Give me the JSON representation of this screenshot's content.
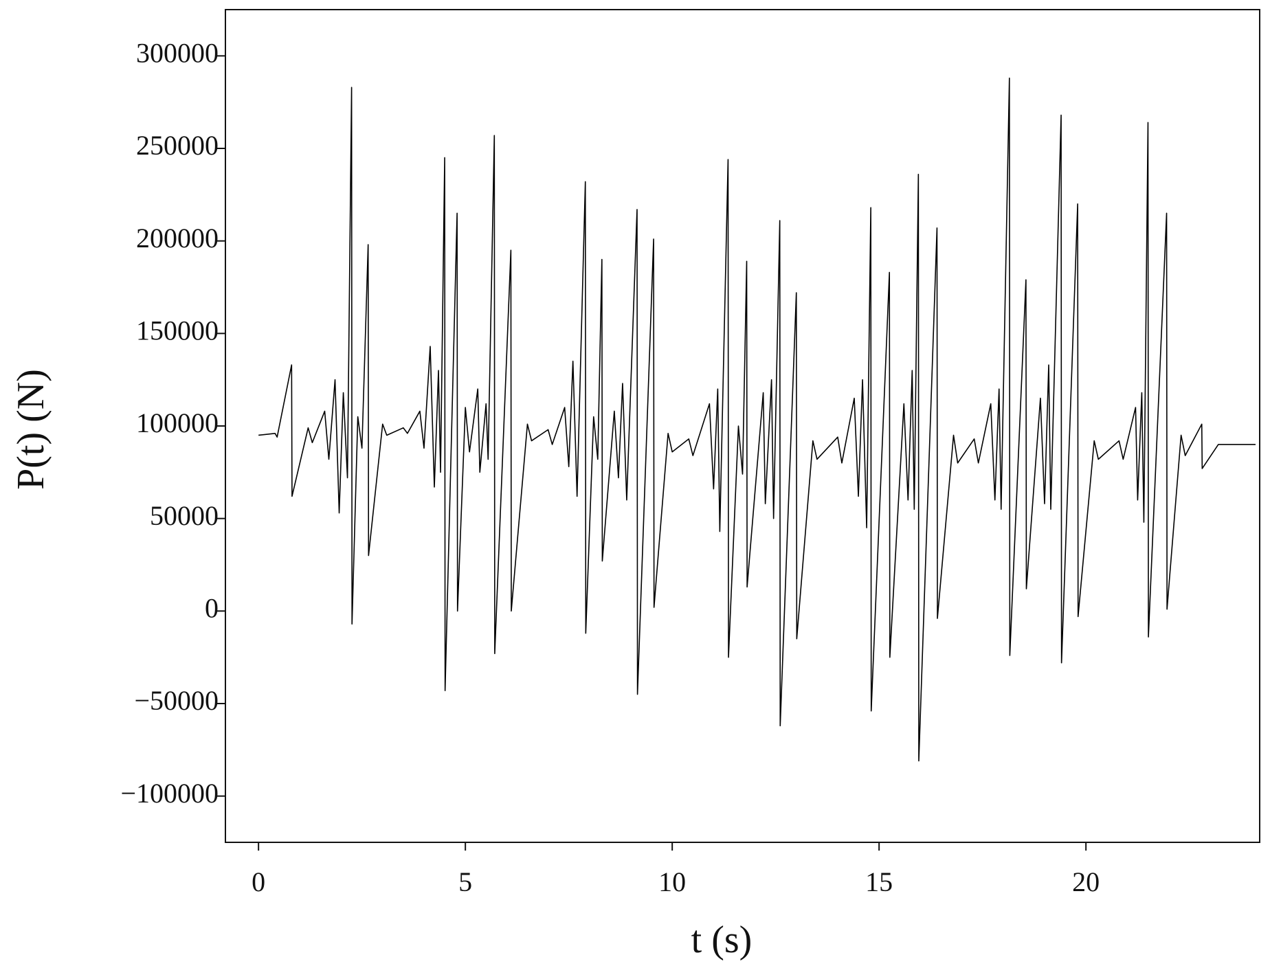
{
  "chart_data": {
    "type": "line",
    "xlabel": "t (s)",
    "ylabel": "P(t) (N)",
    "xlim": [
      -0.8,
      24.2
    ],
    "ylim": [
      -125000,
      325000
    ],
    "xticks": [
      0,
      5,
      10,
      15,
      20
    ],
    "yticks": [
      {
        "value": -100000,
        "label": "−100000"
      },
      {
        "value": -50000,
        "label": "−50000"
      },
      0,
      50000,
      100000,
      150000,
      200000,
      250000,
      300000
    ],
    "grid": false,
    "series": [
      {
        "color": "#000000",
        "x": [
          0,
          0.4,
          0.45,
          0.8,
          0.81,
          1.2,
          1.3,
          1.6,
          1.7,
          1.85,
          1.95,
          2.05,
          2.15,
          2.25,
          2.26,
          2.4,
          2.5,
          2.65,
          2.66,
          3.0,
          3.1,
          3.5,
          3.6,
          3.9,
          4.0,
          4.15,
          4.25,
          4.35,
          4.4,
          4.5,
          4.51,
          4.8,
          4.81,
          5.0,
          5.1,
          5.3,
          5.35,
          5.5,
          5.55,
          5.7,
          5.71,
          6.1,
          6.11,
          6.5,
          6.6,
          7.0,
          7.1,
          7.4,
          7.5,
          7.6,
          7.7,
          7.9,
          7.91,
          8.1,
          8.2,
          8.3,
          8.31,
          8.6,
          8.7,
          8.8,
          8.9,
          9.15,
          9.16,
          9.55,
          9.56,
          9.9,
          10.0,
          10.4,
          10.5,
          10.9,
          11.0,
          11.1,
          11.15,
          11.35,
          11.36,
          11.6,
          11.7,
          11.8,
          11.81,
          12.2,
          12.25,
          12.4,
          12.45,
          12.6,
          12.61,
          13.0,
          13.01,
          13.4,
          13.5,
          14.0,
          14.1,
          14.4,
          14.5,
          14.6,
          14.7,
          14.8,
          14.81,
          15.25,
          15.26,
          15.6,
          15.7,
          15.8,
          15.85,
          15.95,
          15.96,
          16.4,
          16.41,
          16.8,
          16.9,
          17.3,
          17.4,
          17.7,
          17.8,
          17.9,
          17.95,
          18.15,
          18.16,
          18.55,
          18.56,
          18.9,
          19.0,
          19.1,
          19.15,
          19.4,
          19.41,
          19.8,
          19.81,
          20.2,
          20.3,
          20.8,
          20.9,
          21.2,
          21.25,
          21.35,
          21.4,
          21.5,
          21.51,
          21.95,
          21.96,
          22.3,
          22.4,
          22.8,
          22.81,
          23.2,
          24.1
        ],
        "values": [
          95000,
          96000,
          94000,
          133000,
          62000,
          99000,
          91000,
          108000,
          82000,
          125000,
          53000,
          118000,
          72000,
          283000,
          -7000,
          105000,
          88000,
          198000,
          30000,
          101000,
          95000,
          99000,
          96000,
          108000,
          88000,
          143000,
          67000,
          130000,
          75000,
          245000,
          -43000,
          215000,
          0,
          110000,
          86000,
          120000,
          75000,
          112000,
          82000,
          257000,
          -23000,
          195000,
          0,
          101000,
          92000,
          98000,
          90000,
          110000,
          78000,
          135000,
          62000,
          232000,
          -12000,
          105000,
          82000,
          190000,
          27000,
          108000,
          72000,
          123000,
          60000,
          217000,
          -45000,
          201000,
          2000,
          96000,
          86000,
          93000,
          84000,
          112000,
          66000,
          120000,
          43000,
          244000,
          -25000,
          100000,
          74000,
          189000,
          13000,
          118000,
          58000,
          125000,
          50000,
          211000,
          -62000,
          172000,
          -15000,
          92000,
          82000,
          94000,
          80000,
          115000,
          62000,
          125000,
          45000,
          218000,
          -54000,
          183000,
          -25000,
          112000,
          60000,
          130000,
          55000,
          236000,
          -81000,
          207000,
          -4000,
          95000,
          80000,
          93000,
          80000,
          112000,
          60000,
          120000,
          55000,
          288000,
          -24000,
          179000,
          12000,
          115000,
          58000,
          133000,
          55000,
          268000,
          -28000,
          220000,
          -3000,
          92000,
          82000,
          92000,
          82000,
          110000,
          60000,
          118000,
          48000,
          264000,
          -14000,
          215000,
          1000,
          95000,
          84000,
          101000,
          77000,
          90000,
          90000
        ]
      }
    ]
  }
}
